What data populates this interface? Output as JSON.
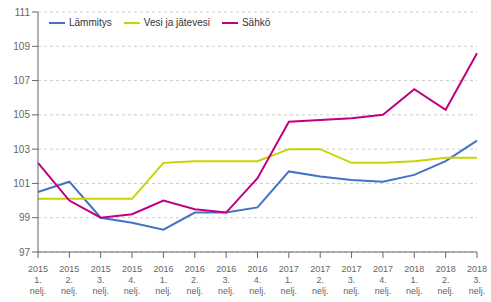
{
  "chart_data": {
    "type": "line",
    "categories": [
      "2015\n1.\nnelj.",
      "2015\n2.\nnelj.",
      "2015\n3.\nnelj.",
      "2015\n4.\nnelj.",
      "2016\n1.\nnelj.",
      "2016\n2.\nnelj.",
      "2016\n3.\nnelj.",
      "2016\n4.\nnelj.",
      "2017\n1.\nnelj.",
      "2017\n2.\nnelj.",
      "2017\n3.\nnelj.",
      "2017\n4.\nnelj.",
      "2018\n1.\nnelj.",
      "2018\n2.\nnelj.",
      "2018\n3.\nnelj."
    ],
    "series": [
      {
        "name": "Lämmitys",
        "color": "#4472c4",
        "values": [
          100.5,
          101.1,
          99.0,
          98.7,
          98.3,
          99.3,
          99.3,
          99.6,
          101.7,
          101.4,
          101.2,
          101.1,
          101.5,
          102.3,
          103.5
        ]
      },
      {
        "name": "Vesi ja jätevesi",
        "color": "#c8d400",
        "values": [
          100.1,
          100.1,
          100.1,
          100.1,
          102.2,
          102.3,
          102.3,
          102.3,
          103.0,
          103.0,
          102.2,
          102.2,
          102.3,
          102.5,
          102.5
        ]
      },
      {
        "name": "Sähkö",
        "color": "#c00080",
        "values": [
          102.2,
          100.0,
          99.0,
          99.2,
          100.0,
          99.5,
          99.3,
          101.3,
          104.6,
          104.7,
          104.8,
          105.0,
          106.5,
          105.3,
          108.6
        ]
      }
    ],
    "ylim": [
      97,
      111
    ],
    "yticks": [
      97,
      99,
      101,
      103,
      105,
      107,
      109,
      111
    ],
    "grid": true,
    "legend": "upper left"
  }
}
